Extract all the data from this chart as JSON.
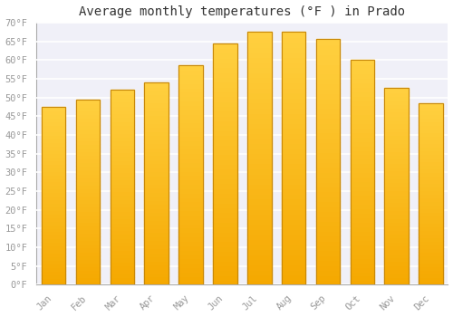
{
  "title": "Average monthly temperatures (°F ) in Prado",
  "months": [
    "Jan",
    "Feb",
    "Mar",
    "Apr",
    "May",
    "Jun",
    "Jul",
    "Aug",
    "Sep",
    "Oct",
    "Nov",
    "Dec"
  ],
  "values": [
    47.5,
    49.5,
    52.0,
    54.0,
    58.5,
    64.5,
    67.5,
    67.5,
    65.5,
    60.0,
    52.5,
    48.5
  ],
  "bar_color_top": "#FFD040",
  "bar_color_bottom": "#F5A800",
  "bar_edge_color": "#C8880A",
  "ylim": [
    0,
    70
  ],
  "yticks": [
    0,
    5,
    10,
    15,
    20,
    25,
    30,
    35,
    40,
    45,
    50,
    55,
    60,
    65,
    70
  ],
  "ytick_labels": [
    "0°F",
    "5°F",
    "10°F",
    "15°F",
    "20°F",
    "25°F",
    "30°F",
    "35°F",
    "40°F",
    "45°F",
    "50°F",
    "55°F",
    "60°F",
    "65°F",
    "70°F"
  ],
  "background_color": "#ffffff",
  "plot_bg_color": "#f0f0f8",
  "grid_color": "#ffffff",
  "title_fontsize": 10,
  "tick_fontsize": 7.5,
  "tick_color": "#999999",
  "spine_color": "#aaaaaa"
}
